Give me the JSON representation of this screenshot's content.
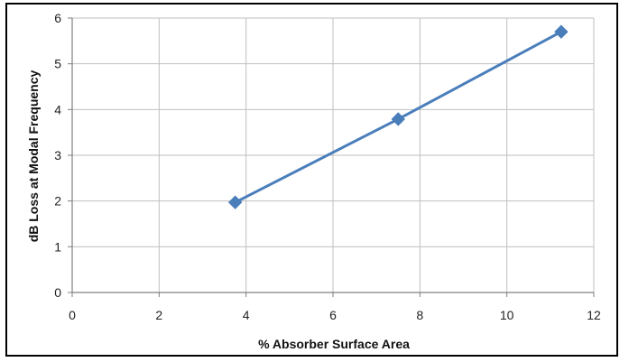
{
  "chart_data": {
    "type": "line",
    "title": "",
    "xlabel": "% Absorber Surface Area",
    "ylabel": "dB Loss at Modal Frequency",
    "xlim": [
      0,
      12
    ],
    "ylim": [
      0,
      6
    ],
    "x_ticks": [
      "0",
      "2",
      "4",
      "6",
      "8",
      "10",
      "12"
    ],
    "y_ticks": [
      "0",
      "1",
      "2",
      "3",
      "4",
      "5",
      "6"
    ],
    "grid": true,
    "legend": "none",
    "series": [
      {
        "color": "#4a7ebb",
        "marker": "diamond",
        "x": [
          3.75,
          7.5,
          11.25
        ],
        "y": [
          1.97,
          3.79,
          5.7
        ]
      }
    ]
  }
}
